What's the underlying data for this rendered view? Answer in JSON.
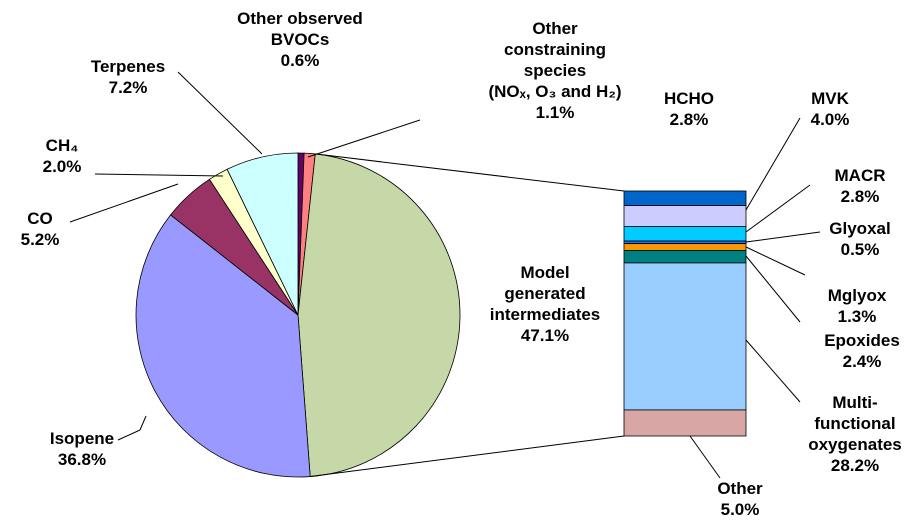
{
  "chart_data": [
    {
      "type": "pie",
      "categories": [
        "Other observed\nBVOCs",
        "Other\nconstraining\nspecies\n(NOₓ, O₃ and H₂)",
        "Model\ngenerated\nintermediates",
        "Isopene",
        "CO",
        "CH₄",
        "Terpenes"
      ],
      "values": [
        0.6,
        1.1,
        47.1,
        36.8,
        5.2,
        2.0,
        7.2
      ],
      "value_labels": [
        "0.6%",
        "1.1%",
        "47.1%",
        "36.8%",
        "5.2%",
        "2.0%",
        "7.2%"
      ],
      "colors": [
        "#660066",
        "#ff8080",
        "#c6d7a8",
        "#9999ff",
        "#993366",
        "#ffffcc",
        "#ccffff"
      ]
    },
    {
      "type": "bar",
      "categories": [
        "HCHO",
        "MVK",
        "MACR",
        "Glyoxal",
        "Mglyox",
        "Epoxides",
        "Multi-\nfunctional\noxygenates",
        "Other"
      ],
      "values": [
        2.8,
        4.0,
        2.8,
        0.5,
        1.3,
        2.4,
        28.2,
        5.0
      ],
      "value_labels": [
        "2.8%",
        "4.0%",
        "2.8%",
        "0.5%",
        "1.3%",
        "2.4%",
        "28.2%",
        "5.0%"
      ],
      "colors": [
        "#0066cc",
        "#ccccff",
        "#00ccff",
        "#3366ff",
        "#ff9900",
        "#008080",
        "#99ccff",
        "#d9a6a6"
      ]
    }
  ]
}
